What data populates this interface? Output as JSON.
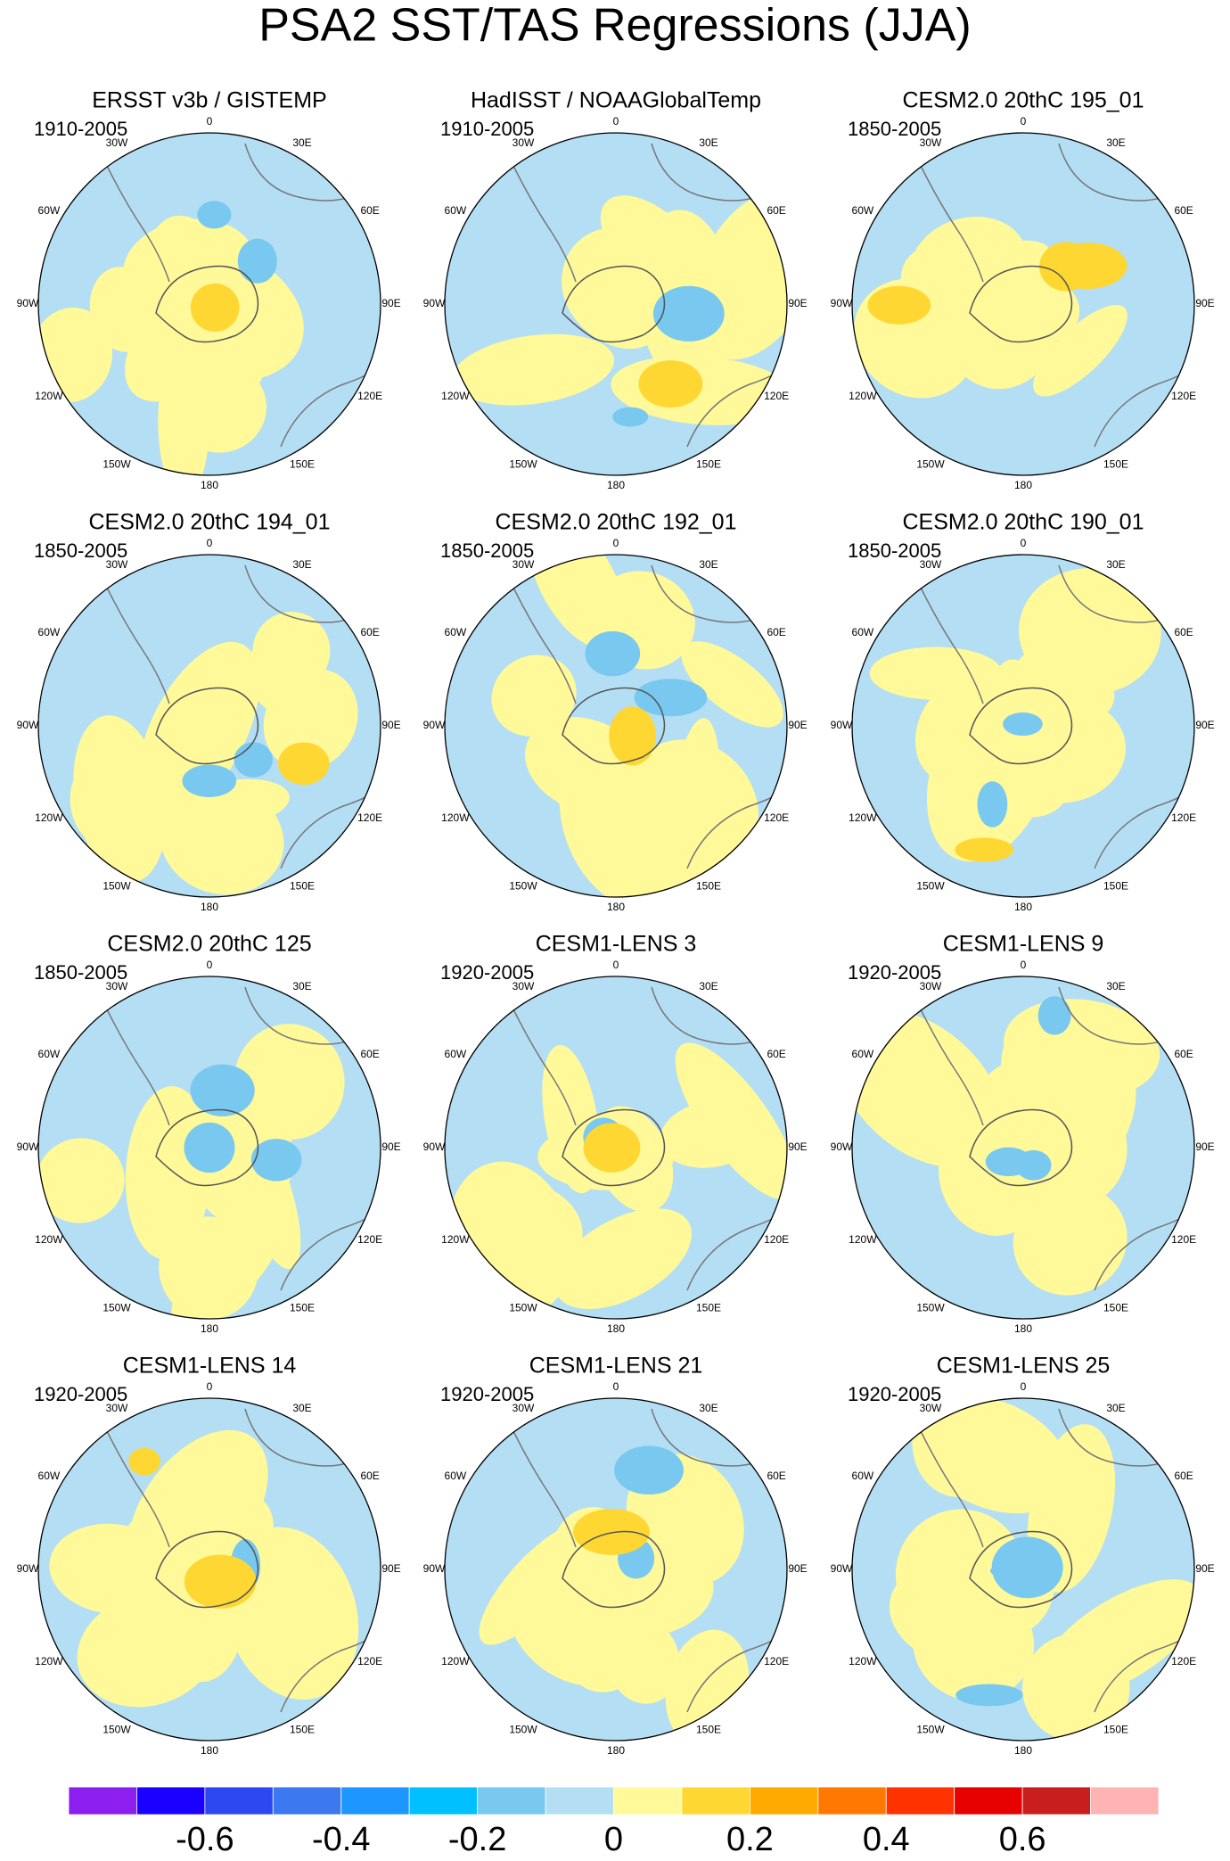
{
  "title": "PSA2 SST/TAS Regressions (JJA)",
  "longitude_labels": [
    "0",
    "30E",
    "60E",
    "90E",
    "120E",
    "150E",
    "180",
    "150W",
    "120W",
    "90W",
    "60W",
    "30W"
  ],
  "panels": [
    {
      "title": "ERSST v3b / GISTEMP",
      "period": "1910-2005"
    },
    {
      "title": "HadISST / NOAAGlobalTemp",
      "period": "1910-2005"
    },
    {
      "title": "CESM2.0 20thC 195_01",
      "period": "1850-2005"
    },
    {
      "title": "CESM2.0 20thC 194_01",
      "period": "1850-2005"
    },
    {
      "title": "CESM2.0 20thC 192_01",
      "period": "1850-2005"
    },
    {
      "title": "CESM2.0 20thC 190_01",
      "period": "1850-2005"
    },
    {
      "title": "CESM2.0 20thC 125",
      "period": "1850-2005"
    },
    {
      "title": "CESM1-LENS 3",
      "period": "1920-2005"
    },
    {
      "title": "CESM1-LENS 9",
      "period": "1920-2005"
    },
    {
      "title": "CESM1-LENS 14",
      "period": "1920-2005"
    },
    {
      "title": "CESM1-LENS 21",
      "period": "1920-2005"
    },
    {
      "title": "CESM1-LENS 25",
      "period": "1920-2005"
    }
  ],
  "colorbar": {
    "colors": [
      "#8c1ef0",
      "#1a00ff",
      "#2c48f0",
      "#3c78f0",
      "#1e96ff",
      "#00c0ff",
      "#78c8f0",
      "#b4def4",
      "#fff99a",
      "#ffd732",
      "#ffaa00",
      "#ff7800",
      "#ff3200",
      "#e60000",
      "#c81e1e",
      "#ffb4b4"
    ],
    "clim": [
      -0.8,
      0.8
    ],
    "ticks": [
      -0.6,
      -0.4,
      -0.2,
      0,
      0.2,
      0.4,
      0.6
    ]
  }
}
